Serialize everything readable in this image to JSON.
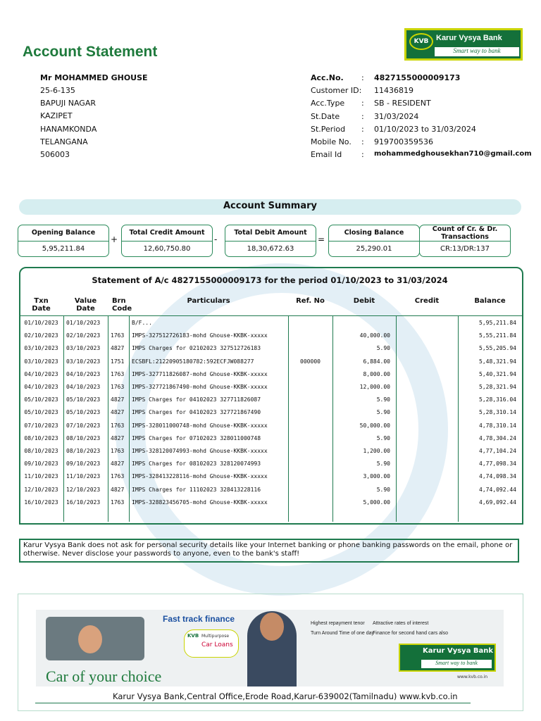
{
  "header": {
    "title": "Account Statement",
    "logo": {
      "mark": "KVB",
      "name": "Karur Vysya Bank",
      "tagline": "Smart way to bank"
    }
  },
  "customer": {
    "name": "Mr MOHAMMED GHOUSE",
    "address": [
      "25-6-135",
      "BAPUJI NAGAR",
      "KAZIPET",
      "HANAMKONDA",
      "TELANGANA",
      "506003"
    ]
  },
  "details": {
    "separator": ":",
    "rows": [
      {
        "label": "Acc.No.",
        "value": "4827155000009173"
      },
      {
        "label": "Customer ID:",
        "value": "11436819"
      },
      {
        "label": "Acc.Type",
        "value": "SB - RESIDENT"
      },
      {
        "label": "St.Date",
        "value": "31/03/2024"
      },
      {
        "label": "St.Period",
        "value": "01/10/2023 to 31/03/2024"
      },
      {
        "label": "Mobile No.",
        "value": "919700359536"
      },
      {
        "label": "Email Id",
        "value": "mohammedghousekhan710@gmail.com"
      }
    ]
  },
  "summary": {
    "title": "Account Summary",
    "operators": [
      "+",
      "-",
      "="
    ],
    "boxes": [
      {
        "label": "Opening Balance",
        "value": "5,95,211.84"
      },
      {
        "label": "Total Credit Amount",
        "value": "12,60,750.80"
      },
      {
        "label": "Total Debit Amount",
        "value": "18,30,672.63"
      },
      {
        "label": "Closing Balance",
        "value": "25,290.01"
      },
      {
        "label": "Count of Cr. & Dr. Transactions",
        "value": "CR:13/DR:137"
      }
    ]
  },
  "statement": {
    "title": "Statement of A/c 4827155000009173 for the period 01/10/2023 to 31/03/2024",
    "columns": [
      "Txn Date",
      "Value Date",
      "Brn Code",
      "Particulars",
      "Ref. No",
      "Debit",
      "Credit",
      "Balance"
    ],
    "rows": [
      [
        "01/10/2023",
        "01/10/2023",
        null,
        "B/F...",
        null,
        null,
        null,
        "5,95,211.84"
      ],
      [
        "02/10/2023",
        "02/10/2023",
        "1763",
        "IMPS-327512726183-mohd Ghouse-KKBK-xxxxx",
        null,
        "40,000.00",
        null,
        "5,55,211.84"
      ],
      [
        "03/10/2023",
        "03/10/2023",
        "4827",
        "IMPS Charges for 02102023 327512726183",
        null,
        "5.90",
        null,
        "5,55,205.94"
      ],
      [
        "03/10/2023",
        "03/10/2023",
        "1751",
        "ECSBFL:21220905180782:592ECFJW088277",
        "000000",
        "6,884.00",
        null,
        "5,48,321.94"
      ],
      [
        "04/10/2023",
        "04/10/2023",
        "1763",
        "IMPS-327711826087-mohd Ghouse-KKBK-xxxxx",
        null,
        "8,000.00",
        null,
        "5,40,321.94"
      ],
      [
        "04/10/2023",
        "04/10/2023",
        "1763",
        "IMPS-327721867490-mohd Ghouse-KKBK-xxxxx",
        null,
        "12,000.00",
        null,
        "5,28,321.94"
      ],
      [
        "05/10/2023",
        "05/10/2023",
        "4827",
        "IMPS Charges for 04102023 327711826087",
        null,
        "5.90",
        null,
        "5,28,316.04"
      ],
      [
        "05/10/2023",
        "05/10/2023",
        "4827",
        "IMPS Charges for 04102023 327721867490",
        null,
        "5.90",
        null,
        "5,28,310.14"
      ],
      [
        "07/10/2023",
        "07/10/2023",
        "1763",
        "IMPS-328011000748-mohd Ghouse-KKBK-xxxxx",
        null,
        "50,000.00",
        null,
        "4,78,310.14"
      ],
      [
        "08/10/2023",
        "08/10/2023",
        "4827",
        "IMPS Charges for 07102023 328011000748",
        null,
        "5.90",
        null,
        "4,78,304.24"
      ],
      [
        "08/10/2023",
        "08/10/2023",
        "1763",
        "IMPS-328120074993-mohd Ghouse-KKBK-xxxxx",
        null,
        "1,200.00",
        null,
        "4,77,104.24"
      ],
      [
        "09/10/2023",
        "09/10/2023",
        "4827",
        "IMPS Charges for 08102023 328120074993",
        null,
        "5.90",
        null,
        "4,77,098.34"
      ],
      [
        "11/10/2023",
        "11/10/2023",
        "1763",
        "IMPS-328413228116-mohd Ghouse-KKBK-xxxxx",
        null,
        "3,000.00",
        null,
        "4,74,098.34"
      ],
      [
        "12/10/2023",
        "12/10/2023",
        "4827",
        "IMPS Charges for 11102023 328413228116",
        null,
        "5.90",
        null,
        "4,74,092.44"
      ],
      [
        "16/10/2023",
        "16/10/2023",
        "1763",
        "IMPS-328823456705-mohd Ghouse-KKBK-xxxxx",
        null,
        "5,000.00",
        null,
        "4,69,092.44"
      ]
    ]
  },
  "notice": "Karur Vysya Bank does not ask for personal security details like your Internet banking or phone banking passwords on the email, phone or otherwise. Never disclose your passwords to anyone, even to the bank's staff!",
  "advert": {
    "headline": "Fast track finance",
    "badge": "KVB",
    "product_sub": "Multipurpose",
    "product": "Car Loans",
    "bullets": [
      "Highest repayment tenor",
      "Attractive rates of interest",
      "Turn Around Time of one day",
      "Finance for second hand cars also"
    ],
    "bank": "Karur Vysya Bank",
    "tagline": "Smart way to bank",
    "site": "www.kvb.co.in",
    "slogan": "Car of your choice"
  },
  "footer": "Karur Vysya Bank,Central Office,Erode Road,Karur-639002(Tamilnadu) www.kvb.co.in"
}
